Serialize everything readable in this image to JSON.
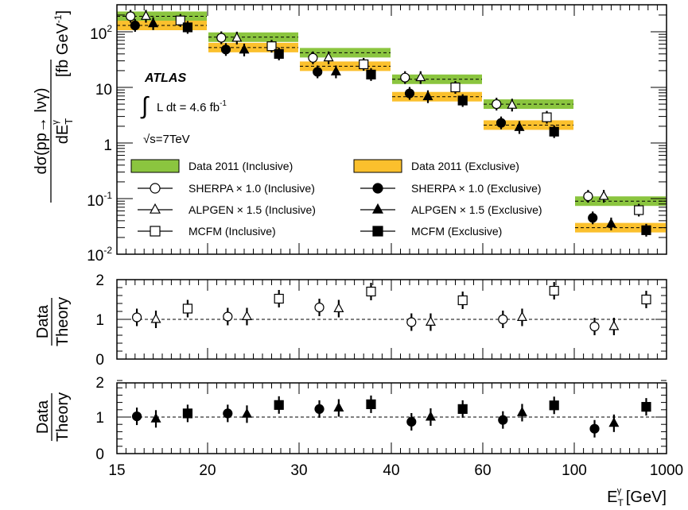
{
  "chart_data": {
    "type": "scatter",
    "x_tick_labels": [
      "15",
      "20",
      "30",
      "40",
      "60",
      "100",
      "1000"
    ],
    "x_axis_label": {
      "base": "E",
      "sup": "γ",
      "sub": "T",
      "rest": " [GeV]"
    },
    "bins": [
      "15-20",
      "20-30",
      "30-40",
      "40-60",
      "60-100",
      "100-1000"
    ],
    "top_panel": {
      "y_axis_label": "dσ(pp→ lνγ)/dE_T^γ [fb GeV^-1]",
      "y_tick_labels": [
        "10-2",
        "10-1",
        "1",
        "10",
        "10²"
      ],
      "yscale": "log",
      "ylim": [
        0.01,
        250
      ],
      "atlas_label": "ATLAS",
      "lumi_label": "L dt = 4.6 fb-1",
      "energy_label": "√s=7TeV",
      "legend": [
        {
          "label": "Data 2011 (Inclusive)",
          "marker": "green-band"
        },
        {
          "label": "Data 2011 (Exclusive)",
          "marker": "yellow-band"
        },
        {
          "label": "SHERPA × 1.0 (Inclusive)",
          "marker": "open-circle"
        },
        {
          "label": "SHERPA × 1.0 (Exclusive)",
          "marker": "filled-circle"
        },
        {
          "label": "ALPGEN × 1.5 (Inclusive)",
          "marker": "open-triangle"
        },
        {
          "label": "ALPGEN × 1.5 (Exclusive)",
          "marker": "filled-triangle"
        },
        {
          "label": "MCFM (Inclusive)",
          "marker": "open-square"
        },
        {
          "label": "MCFM (Exclusive)",
          "marker": "filled-square"
        }
      ],
      "data_inclusive": [
        190,
        80,
        42,
        14,
        5.0,
        0.09
      ],
      "data_exclusive": [
        130,
        52,
        24,
        6.8,
        2.1,
        0.03
      ],
      "sherpa_inclusive": [
        190,
        78,
        34,
        15,
        5.0,
        0.11
      ],
      "sherpa_exclusive": [
        130,
        48,
        19,
        7.8,
        2.3,
        0.045
      ],
      "alpgen_inclusive": [
        190,
        77,
        34,
        15,
        4.8,
        0.11
      ],
      "alpgen_exclusive": [
        140,
        47,
        19,
        6.8,
        1.9,
        0.035
      ],
      "mcfm_inclusive": [
        160,
        55,
        26,
        10,
        2.9,
        0.062
      ],
      "mcfm_exclusive": [
        120,
        40,
        17,
        5.8,
        1.6,
        0.027
      ]
    },
    "ratio_inclusive": {
      "y_axis_label": [
        "Data",
        "Theory"
      ],
      "y_tick_labels": [
        "0",
        "1",
        "2"
      ],
      "ylim": [
        0,
        2
      ],
      "sherpa": [
        1.05,
        1.07,
        1.3,
        0.93,
        1.0,
        0.82
      ],
      "alpgen": [
        1.0,
        1.07,
        1.27,
        0.93,
        1.05,
        0.82
      ],
      "mcfm": [
        1.27,
        1.52,
        1.7,
        1.48,
        1.72,
        1.5
      ]
    },
    "ratio_exclusive": {
      "y_axis_label": [
        "Data",
        "Theory"
      ],
      "y_tick_labels": [
        "0",
        "1",
        "2"
      ],
      "ylim": [
        0,
        2
      ],
      "sherpa": [
        1.02,
        1.1,
        1.22,
        0.87,
        0.92,
        0.68
      ],
      "alpgen": [
        0.95,
        1.08,
        1.25,
        1.0,
        1.12,
        0.83
      ],
      "mcfm": [
        1.1,
        1.33,
        1.35,
        1.22,
        1.32,
        1.28
      ]
    }
  }
}
